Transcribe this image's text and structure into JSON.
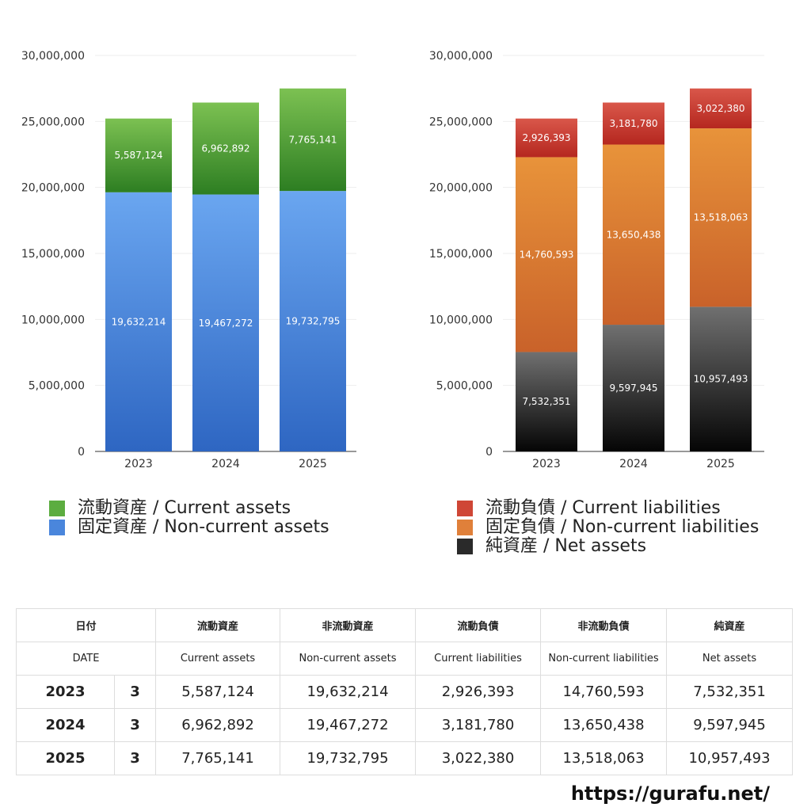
{
  "chart_data": [
    {
      "type": "bar",
      "stacked": true,
      "categories": [
        "2023",
        "2024",
        "2025"
      ],
      "ylim": [
        0,
        30000000
      ],
      "yticks": [
        "0",
        "5,000,000",
        "10,000,000",
        "15,000,000",
        "20,000,000",
        "25,000,000",
        "30,000,000"
      ],
      "grid": true,
      "legend_position": "bottom",
      "series": [
        {
          "name": "固定資産 / Non-current assets",
          "values": [
            19632214,
            19467272,
            19732795
          ],
          "labels": [
            "19,632,214",
            "19,467,272",
            "19,732,795"
          ],
          "color_top": "#6aa6f0",
          "color_bottom": "#2e66c2"
        },
        {
          "name": "流動資産 / Current assets",
          "values": [
            5587124,
            6962892,
            7765141
          ],
          "labels": [
            "5,587,124",
            "6,962,892",
            "7,765,141"
          ],
          "color_top": "#7cc152",
          "color_bottom": "#2d7e22"
        }
      ]
    },
    {
      "type": "bar",
      "stacked": true,
      "categories": [
        "2023",
        "2024",
        "2025"
      ],
      "ylim": [
        0,
        30000000
      ],
      "yticks": [
        "0",
        "5,000,000",
        "10,000,000",
        "15,000,000",
        "20,000,000",
        "25,000,000",
        "30,000,000"
      ],
      "grid": true,
      "legend_position": "bottom",
      "series": [
        {
          "name": "純資産 / Net assets",
          "values": [
            7532351,
            9597945,
            10957493
          ],
          "labels": [
            "7,532,351",
            "9,597,945",
            "10,957,493"
          ],
          "color_top": "#707070",
          "color_bottom": "#050505"
        },
        {
          "name": "固定負債 / Non-current liabilities",
          "values": [
            14760593,
            13650438,
            13518063
          ],
          "labels": [
            "14,760,593",
            "13,650,438",
            "13,518,063"
          ],
          "color_top": "#e8933a",
          "color_bottom": "#c9622a"
        },
        {
          "name": "流動負債 / Current liabilities",
          "values": [
            2926393,
            3181780,
            3022380
          ],
          "labels": [
            "2,926,393",
            "3,181,780",
            "3,022,380"
          ],
          "color_top": "#d9574a",
          "color_bottom": "#b5271f"
        }
      ]
    }
  ],
  "legend_left": [
    {
      "label": "流動資産 / Current assets",
      "color": "#5cad40"
    },
    {
      "label": "固定資産 / Non-current assets",
      "color": "#4a86dc"
    }
  ],
  "legend_right": [
    {
      "label": "流動負債 / Current liabilities",
      "color": "#cf4636"
    },
    {
      "label": "固定負債 / Non-current liabilities",
      "color": "#e0803a"
    },
    {
      "label": "純資産 / Net assets",
      "color": "#2a2a2a"
    }
  ],
  "table": {
    "header_jp": [
      "日付",
      "",
      "流動資産",
      "非流動資産",
      "流動負債",
      "非流動負債",
      "純資産"
    ],
    "header_en": [
      "DATE",
      "",
      "Current assets",
      "Non-current assets",
      "Current liabilities",
      "Non-current liabilities",
      "Net assets"
    ],
    "rows": [
      [
        "2023",
        "3",
        "5,587,124",
        "19,632,214",
        "2,926,393",
        "14,760,593",
        "7,532,351"
      ],
      [
        "2024",
        "3",
        "6,962,892",
        "19,467,272",
        "3,181,780",
        "13,650,438",
        "9,597,945"
      ],
      [
        "2025",
        "3",
        "7,765,141",
        "19,732,795",
        "3,022,380",
        "13,518,063",
        "10,957,493"
      ]
    ]
  },
  "footer": "https://gurafu.net/"
}
